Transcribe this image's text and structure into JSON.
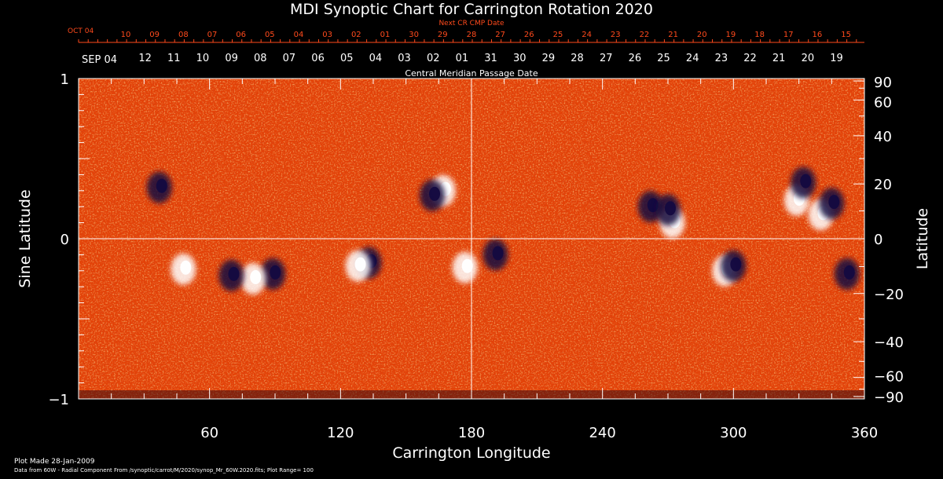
{
  "chart_data": {
    "type": "heatmap",
    "title": "MDI Synoptic Chart for Carrington Rotation 2020",
    "xlabel": "Carrington Longitude",
    "ylabel_left": "Sine Latitude",
    "ylabel_right": "Latitude",
    "xlim": [
      0,
      360
    ],
    "ylim_sine": [
      -1,
      1
    ],
    "x_ticks": [
      60,
      120,
      180,
      240,
      300,
      360
    ],
    "x_tick_labels": [
      "60",
      "120",
      "180",
      "240",
      "300",
      "360"
    ],
    "left_ticks": [
      1,
      0,
      -1
    ],
    "left_tick_labels": [
      "1",
      "0",
      "−1"
    ],
    "right_ticks": [
      90,
      60,
      40,
      20,
      0,
      -20,
      -40,
      -60,
      -90
    ],
    "right_tick_labels": [
      "90",
      "60",
      "40",
      "20",
      "0",
      "−20",
      "−40",
      "−60",
      "−90"
    ],
    "cmp_axis_label": "Central Meridian Passage Date",
    "cmp_month_label": "SEP 04",
    "cmp_dates": [
      "12",
      "11",
      "10",
      "09",
      "08",
      "07",
      "06",
      "05",
      "04",
      "03",
      "02",
      "01",
      "31",
      "30",
      "29",
      "28",
      "27",
      "26",
      "25",
      "24",
      "23",
      "22",
      "21",
      "20",
      "19"
    ],
    "next_cmp_axis_label": "Next CR CMP Date",
    "next_cmp_month_label": "OCT 04",
    "next_cmp_dates": [
      "10",
      "09",
      "08",
      "07",
      "06",
      "05",
      "04",
      "03",
      "02",
      "01",
      "30",
      "29",
      "28",
      "27",
      "26",
      "25",
      "24",
      "23",
      "22",
      "21",
      "20",
      "19",
      "18",
      "17",
      "16",
      "15"
    ],
    "colors": {
      "background_field": "#e34208",
      "positive_polarity": "#ffffff",
      "negative_polarity": "#140a40",
      "next_cmp_text": "#ff4a1c",
      "axes": "#ffffff"
    },
    "magnetic_regions": [
      {
        "lon": 89,
        "sinlat": -0.22,
        "polarity": "negative"
      },
      {
        "lon": 80,
        "sinlat": -0.25,
        "polarity": "positive"
      },
      {
        "lon": 70,
        "sinlat": -0.23,
        "polarity": "negative"
      },
      {
        "lon": 48,
        "sinlat": -0.19,
        "polarity": "positive"
      },
      {
        "lon": 133,
        "sinlat": -0.15,
        "polarity": "negative"
      },
      {
        "lon": 128,
        "sinlat": -0.17,
        "polarity": "positive"
      },
      {
        "lon": 177,
        "sinlat": -0.18,
        "polarity": "positive"
      },
      {
        "lon": 191,
        "sinlat": -0.1,
        "polarity": "negative"
      },
      {
        "lon": 167,
        "sinlat": 0.3,
        "polarity": "positive"
      },
      {
        "lon": 162,
        "sinlat": 0.27,
        "polarity": "negative"
      },
      {
        "lon": 37,
        "sinlat": 0.32,
        "polarity": "negative"
      },
      {
        "lon": 262,
        "sinlat": 0.2,
        "polarity": "negative"
      },
      {
        "lon": 272,
        "sinlat": 0.1,
        "polarity": "positive"
      },
      {
        "lon": 270,
        "sinlat": 0.18,
        "polarity": "negative"
      },
      {
        "lon": 296,
        "sinlat": -0.2,
        "polarity": "positive"
      },
      {
        "lon": 300,
        "sinlat": -0.17,
        "polarity": "negative"
      },
      {
        "lon": 329,
        "sinlat": 0.24,
        "polarity": "positive"
      },
      {
        "lon": 340,
        "sinlat": 0.15,
        "polarity": "positive"
      },
      {
        "lon": 345,
        "sinlat": 0.22,
        "polarity": "negative"
      },
      {
        "lon": 332,
        "sinlat": 0.35,
        "polarity": "negative"
      },
      {
        "lon": 352,
        "sinlat": -0.22,
        "polarity": "negative"
      }
    ]
  },
  "footer": {
    "plot_made": "Plot Made 28-Jan-2009",
    "data_source": "Data from 60W - Radial Component From /synoptic/carrot/M/2020/synop_Mr_60W.2020.fits; Plot Range= 100"
  }
}
